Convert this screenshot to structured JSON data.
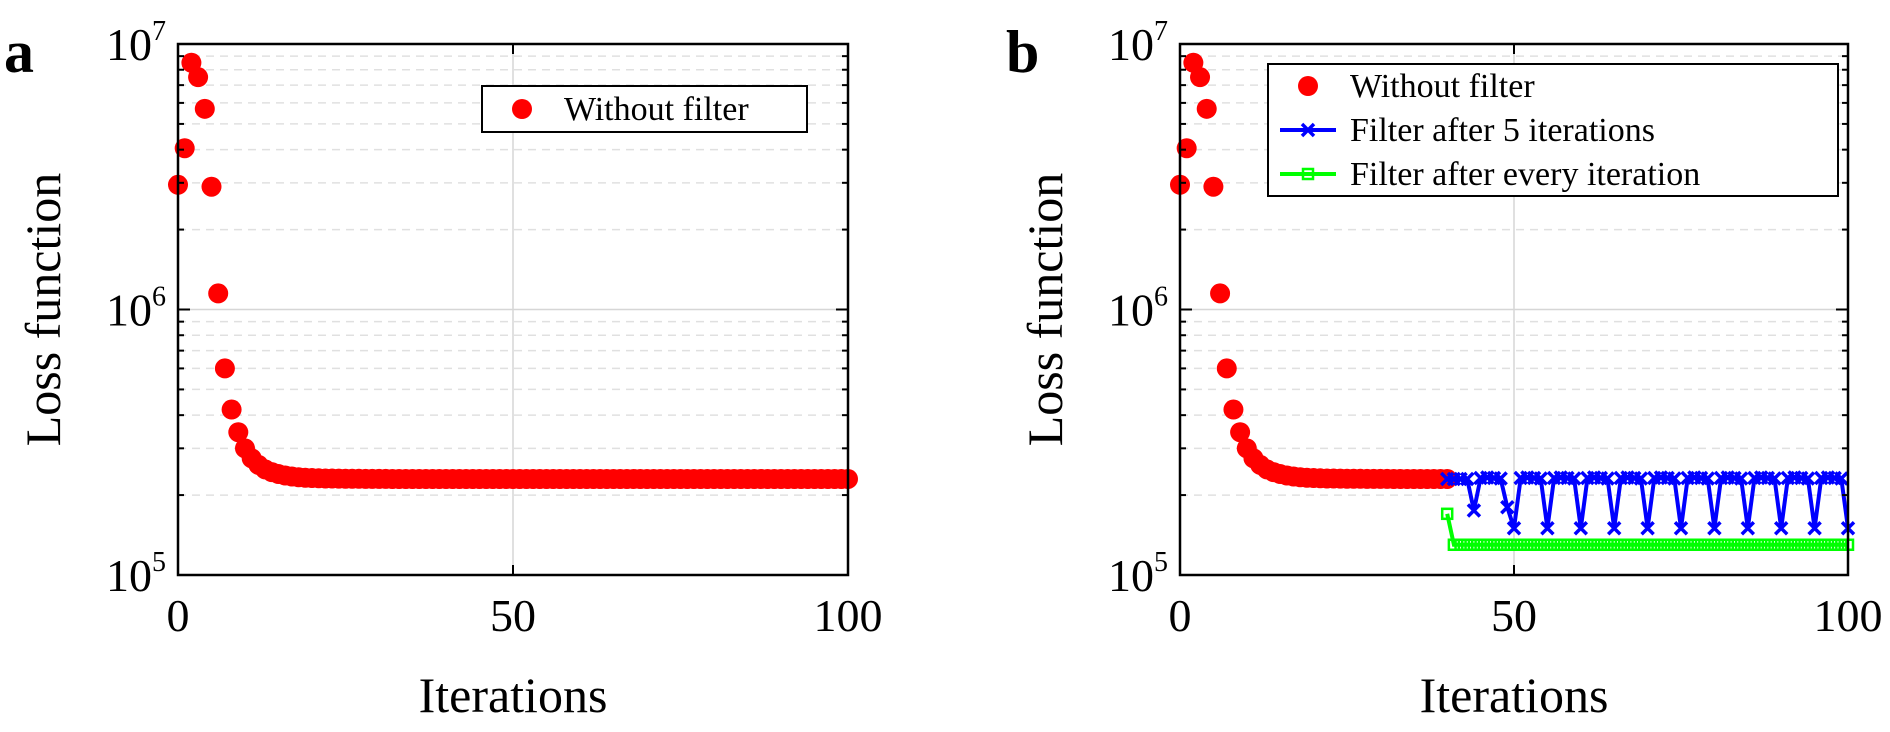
{
  "panel_labels": [
    "a",
    "b"
  ],
  "chart_data": [
    {
      "type": "scatter",
      "panel": "a",
      "xlabel": "Iterations",
      "ylabel": "Loss function",
      "xlim": [
        0,
        100
      ],
      "ylim": [
        100000,
        10000000
      ],
      "yscale": "log",
      "xticks": [
        "0",
        "50",
        "100"
      ],
      "yticks": [
        {
          "base": "10",
          "exp": "5"
        },
        {
          "base": "10",
          "exp": "6"
        },
        {
          "base": "10",
          "exp": "7"
        }
      ],
      "grid": true,
      "legend_position": "top-right",
      "series": [
        {
          "name": "Without filter",
          "color": "#ff0000",
          "marker": "circle",
          "line": false,
          "points": [
            [
              0,
              2950000
            ],
            [
              1,
              4050000
            ],
            [
              2,
              8500000
            ],
            [
              3,
              7500000
            ],
            [
              4,
              5700000
            ],
            [
              5,
              2900000
            ],
            [
              6,
              1150000
            ],
            [
              7,
              600000
            ],
            [
              8,
              420000
            ],
            [
              9,
              345000
            ],
            [
              10,
              300000
            ],
            [
              11,
              275000
            ],
            [
              12,
              260000
            ],
            [
              13,
              250000
            ],
            [
              14,
              244000
            ],
            [
              15,
              240000
            ],
            [
              16,
              237000
            ],
            [
              17,
              235000
            ],
            [
              18,
              233500
            ],
            [
              19,
              232500
            ],
            [
              20,
              231800
            ],
            [
              21,
              231300
            ],
            [
              22,
              231000
            ],
            [
              23,
              230800
            ],
            [
              24,
              230600
            ],
            [
              25,
              230500
            ],
            [
              26,
              230400
            ],
            [
              27,
              230300
            ],
            [
              28,
              230200
            ],
            [
              29,
              230200
            ],
            [
              30,
              230100
            ],
            [
              31,
              230100
            ],
            [
              32,
              230000
            ],
            [
              33,
              230000
            ],
            [
              34,
              230000
            ],
            [
              35,
              230000
            ],
            [
              36,
              230000
            ],
            [
              37,
              230000
            ],
            [
              38,
              230000
            ],
            [
              39,
              230000
            ],
            [
              40,
              230000
            ],
            [
              41,
              230000
            ],
            [
              42,
              230000
            ],
            [
              43,
              230000
            ],
            [
              44,
              230000
            ],
            [
              45,
              230000
            ],
            [
              46,
              230000
            ],
            [
              47,
              230000
            ],
            [
              48,
              230000
            ],
            [
              49,
              230000
            ],
            [
              50,
              230000
            ],
            [
              51,
              230000
            ],
            [
              52,
              230000
            ],
            [
              53,
              230000
            ],
            [
              54,
              230000
            ],
            [
              55,
              230000
            ],
            [
              56,
              230000
            ],
            [
              57,
              230000
            ],
            [
              58,
              230000
            ],
            [
              59,
              230000
            ],
            [
              60,
              230000
            ],
            [
              61,
              230000
            ],
            [
              62,
              230000
            ],
            [
              63,
              230000
            ],
            [
              64,
              230000
            ],
            [
              65,
              230000
            ],
            [
              66,
              230000
            ],
            [
              67,
              230000
            ],
            [
              68,
              230000
            ],
            [
              69,
              230000
            ],
            [
              70,
              230000
            ],
            [
              71,
              230000
            ],
            [
              72,
              230000
            ],
            [
              73,
              230000
            ],
            [
              74,
              230000
            ],
            [
              75,
              230000
            ],
            [
              76,
              230000
            ],
            [
              77,
              230000
            ],
            [
              78,
              230000
            ],
            [
              79,
              230000
            ],
            [
              80,
              230000
            ],
            [
              81,
              230000
            ],
            [
              82,
              230000
            ],
            [
              83,
              230000
            ],
            [
              84,
              230000
            ],
            [
              85,
              230000
            ],
            [
              86,
              230000
            ],
            [
              87,
              230000
            ],
            [
              88,
              230000
            ],
            [
              89,
              230000
            ],
            [
              90,
              230000
            ],
            [
              91,
              230000
            ],
            [
              92,
              230000
            ],
            [
              93,
              230000
            ],
            [
              94,
              230000
            ],
            [
              95,
              230000
            ],
            [
              96,
              230000
            ],
            [
              97,
              230000
            ],
            [
              98,
              230000
            ],
            [
              99,
              230000
            ],
            [
              100,
              230000
            ]
          ]
        }
      ]
    },
    {
      "type": "line",
      "panel": "b",
      "xlabel": "Iterations",
      "ylabel": "Loss function",
      "xlim": [
        0,
        100
      ],
      "ylim": [
        100000,
        10000000
      ],
      "yscale": "log",
      "xticks": [
        "0",
        "50",
        "100"
      ],
      "yticks": [
        {
          "base": "10",
          "exp": "5"
        },
        {
          "base": "10",
          "exp": "6"
        },
        {
          "base": "10",
          "exp": "7"
        }
      ],
      "grid": true,
      "legend_position": "top-right",
      "series": [
        {
          "name": "Without filter",
          "color": "#ff0000",
          "marker": "circle",
          "line": false,
          "points": [
            [
              0,
              2950000
            ],
            [
              1,
              4050000
            ],
            [
              2,
              8500000
            ],
            [
              3,
              7500000
            ],
            [
              4,
              5700000
            ],
            [
              5,
              2900000
            ],
            [
              6,
              1150000
            ],
            [
              7,
              600000
            ],
            [
              8,
              420000
            ],
            [
              9,
              345000
            ],
            [
              10,
              300000
            ],
            [
              11,
              275000
            ],
            [
              12,
              260000
            ],
            [
              13,
              250000
            ],
            [
              14,
              244000
            ],
            [
              15,
              240000
            ],
            [
              16,
              237000
            ],
            [
              17,
              235000
            ],
            [
              18,
              233500
            ],
            [
              19,
              232500
            ],
            [
              20,
              231800
            ],
            [
              21,
              231300
            ],
            [
              22,
              231000
            ],
            [
              23,
              230800
            ],
            [
              24,
              230600
            ],
            [
              25,
              230500
            ],
            [
              26,
              230400
            ],
            [
              27,
              230300
            ],
            [
              28,
              230200
            ],
            [
              29,
              230200
            ],
            [
              30,
              230100
            ],
            [
              31,
              230100
            ],
            [
              32,
              230000
            ],
            [
              33,
              230000
            ],
            [
              34,
              230000
            ],
            [
              35,
              230000
            ],
            [
              36,
              230000
            ],
            [
              37,
              230000
            ],
            [
              38,
              230000
            ],
            [
              39,
              230000
            ],
            [
              40,
              230000
            ]
          ]
        },
        {
          "name": "Filter after 5 iterations",
          "color": "#0000ff",
          "marker": "x",
          "line": true,
          "points": [
            [
              40,
              230000
            ],
            [
              41,
              230000
            ],
            [
              42,
              230000
            ],
            [
              43,
              230000
            ],
            [
              44,
              175000
            ],
            [
              45,
              232000
            ],
            [
              46,
              233000
            ],
            [
              47,
              232000
            ],
            [
              48,
              231000
            ],
            [
              49,
              180000
            ],
            [
              50,
              150000
            ],
            [
              51,
              232000
            ],
            [
              52,
              233000
            ],
            [
              53,
              232000
            ],
            [
              54,
              231000
            ],
            [
              55,
              150000
            ],
            [
              56,
              232000
            ],
            [
              57,
              233000
            ],
            [
              58,
              232000
            ],
            [
              59,
              231000
            ],
            [
              60,
              150000
            ],
            [
              61,
              232000
            ],
            [
              62,
              233000
            ],
            [
              63,
              232000
            ],
            [
              64,
              231000
            ],
            [
              65,
              150000
            ],
            [
              66,
              232000
            ],
            [
              67,
              233000
            ],
            [
              68,
              232000
            ],
            [
              69,
              231000
            ],
            [
              70,
              150000
            ],
            [
              71,
              232000
            ],
            [
              72,
              233000
            ],
            [
              73,
              232000
            ],
            [
              74,
              231000
            ],
            [
              75,
              150000
            ],
            [
              76,
              232000
            ],
            [
              77,
              233000
            ],
            [
              78,
              232000
            ],
            [
              79,
              231000
            ],
            [
              80,
              150000
            ],
            [
              81,
              232000
            ],
            [
              82,
              233000
            ],
            [
              83,
              232000
            ],
            [
              84,
              231000
            ],
            [
              85,
              150000
            ],
            [
              86,
              232000
            ],
            [
              87,
              233000
            ],
            [
              88,
              232000
            ],
            [
              89,
              231000
            ],
            [
              90,
              150000
            ],
            [
              91,
              232000
            ],
            [
              92,
              233000
            ],
            [
              93,
              232000
            ],
            [
              94,
              231000
            ],
            [
              95,
              150000
            ],
            [
              96,
              232000
            ],
            [
              97,
              233000
            ],
            [
              98,
              232000
            ],
            [
              99,
              231000
            ],
            [
              100,
              150000
            ]
          ]
        },
        {
          "name": "Filter after every iteration",
          "color": "#00ff00",
          "marker": "square",
          "line": true,
          "points": [
            [
              40,
              170000
            ],
            [
              41,
              130000
            ],
            [
              42,
              130000
            ],
            [
              43,
              130000
            ],
            [
              44,
              130000
            ],
            [
              45,
              130000
            ],
            [
              46,
              130000
            ],
            [
              47,
              130000
            ],
            [
              48,
              130000
            ],
            [
              49,
              130000
            ],
            [
              50,
              130000
            ],
            [
              51,
              130000
            ],
            [
              52,
              130000
            ],
            [
              53,
              130000
            ],
            [
              54,
              130000
            ],
            [
              55,
              130000
            ],
            [
              56,
              130000
            ],
            [
              57,
              130000
            ],
            [
              58,
              130000
            ],
            [
              59,
              130000
            ],
            [
              60,
              130000
            ],
            [
              61,
              130000
            ],
            [
              62,
              130000
            ],
            [
              63,
              130000
            ],
            [
              64,
              130000
            ],
            [
              65,
              130000
            ],
            [
              66,
              130000
            ],
            [
              67,
              130000
            ],
            [
              68,
              130000
            ],
            [
              69,
              130000
            ],
            [
              70,
              130000
            ],
            [
              71,
              130000
            ],
            [
              72,
              130000
            ],
            [
              73,
              130000
            ],
            [
              74,
              130000
            ],
            [
              75,
              130000
            ],
            [
              76,
              130000
            ],
            [
              77,
              130000
            ],
            [
              78,
              130000
            ],
            [
              79,
              130000
            ],
            [
              80,
              130000
            ],
            [
              81,
              130000
            ],
            [
              82,
              130000
            ],
            [
              83,
              130000
            ],
            [
              84,
              130000
            ],
            [
              85,
              130000
            ],
            [
              86,
              130000
            ],
            [
              87,
              130000
            ],
            [
              88,
              130000
            ],
            [
              89,
              130000
            ],
            [
              90,
              130000
            ],
            [
              91,
              130000
            ],
            [
              92,
              130000
            ],
            [
              93,
              130000
            ],
            [
              94,
              130000
            ],
            [
              95,
              130000
            ],
            [
              96,
              130000
            ],
            [
              97,
              130000
            ],
            [
              98,
              130000
            ],
            [
              99,
              130000
            ],
            [
              100,
              130000
            ]
          ]
        }
      ]
    }
  ]
}
